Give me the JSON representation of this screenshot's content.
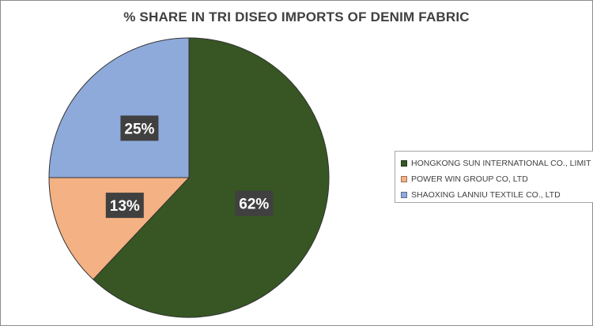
{
  "chart_data": {
    "type": "pie",
    "title": "% SHARE IN TRI DISEO IMPORTS OF DENIM FABRIC",
    "categories": [
      "HONGKONG SUN INTERNATIONAL CO., LIMIT",
      "POWER WIN GROUP CO, LTD",
      "SHAOXING LANNIU TEXTILE CO., LTD"
    ],
    "values": [
      62,
      13,
      25
    ],
    "data_labels": [
      "62%",
      "13%",
      "25%"
    ],
    "colors": [
      "#375623",
      "#f4b183",
      "#8eaadb"
    ],
    "legend_position": "right"
  }
}
